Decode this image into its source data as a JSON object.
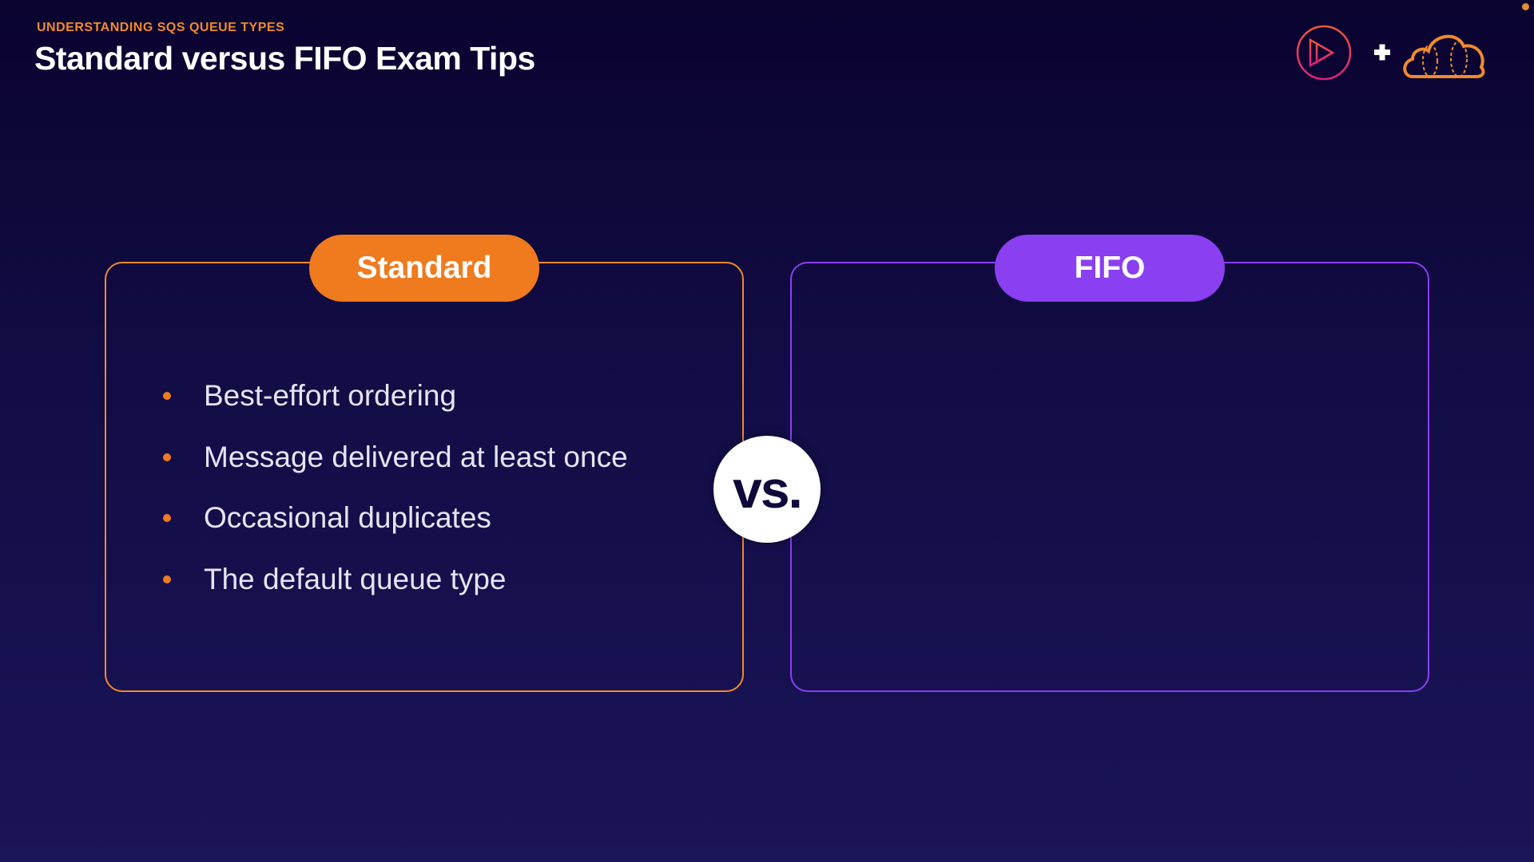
{
  "header": {
    "kicker": "UNDERSTANDING SQS QUEUE TYPES",
    "title": "Standard versus FIFO Exam Tips"
  },
  "logos": {
    "left": "pluralsight-play-icon",
    "separator": "+",
    "right": "cloud-icon"
  },
  "standard": {
    "label": "Standard",
    "color": "#f07a1e",
    "items": [
      "Best-effort ordering",
      "Message delivered at least once",
      "Occasional duplicates",
      "The default queue type"
    ]
  },
  "fifo": {
    "label": "FIFO",
    "color": "#8a3ff0",
    "items": []
  },
  "vs": "vs."
}
